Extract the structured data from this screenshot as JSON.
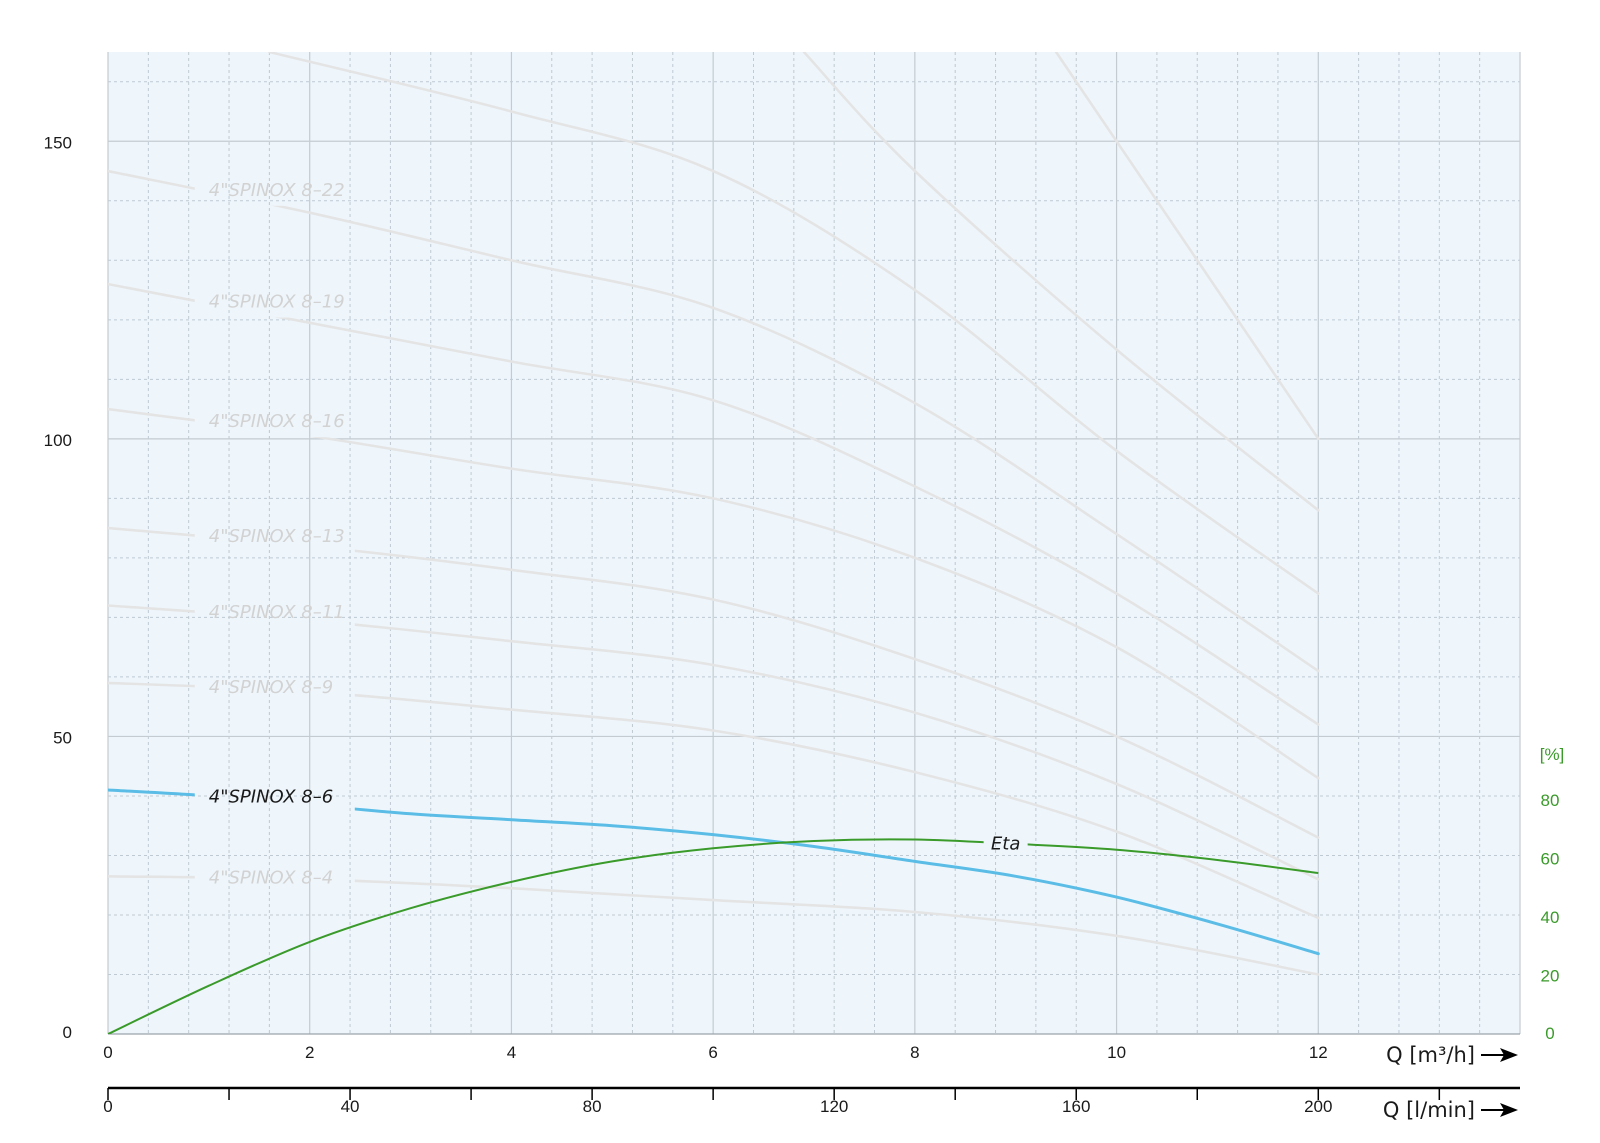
{
  "chart_data": {
    "type": "line",
    "x_axis": {
      "unit_label": "Q [m³/h]",
      "range": [
        0,
        14
      ],
      "ticks": [
        "0",
        "2",
        "4",
        "6",
        "8",
        "10",
        "12"
      ]
    },
    "x2_axis": {
      "unit_label": "Q [l/min]",
      "range": [
        0,
        233.33
      ],
      "ticks": [
        "0",
        "40",
        "80",
        "120",
        "160",
        "200"
      ]
    },
    "y_axis": {
      "range": [
        0,
        165
      ],
      "ticks": [
        "0",
        "50",
        "100",
        "150"
      ]
    },
    "y2_axis": {
      "unit_label": "[%]",
      "range": [
        0,
        80
      ],
      "ticks": [
        "0",
        "20",
        "40",
        "60",
        "80"
      ]
    },
    "grid": true,
    "colors": {
      "plot_bg": "#eef6fc",
      "grid_major": "#c4ccd2",
      "grid_minor": "#bfc9d1",
      "curve_grey": "#e4e4e4",
      "label_grey": "#d2d2d2",
      "highlight": "#5bbde6",
      "efficiency": "#3a9a2a"
    },
    "series": [
      {
        "name": "4\"SPINOX 8–4",
        "highlight": false,
        "x": [
          0,
          2,
          4,
          6,
          8,
          10,
          12
        ],
        "y": [
          26.5,
          26,
          24.5,
          22.5,
          20.5,
          16.5,
          10
        ]
      },
      {
        "name": "4\"SPINOX 8–6",
        "highlight": true,
        "x": [
          0,
          1,
          2,
          3,
          4,
          5,
          6,
          7,
          8,
          9,
          10,
          11,
          12
        ],
        "y": [
          41,
          40,
          38.5,
          37,
          36,
          35,
          33.5,
          31.5,
          29,
          26.5,
          23,
          18.5,
          13.5
        ]
      },
      {
        "name": "4\"SPINOX 8–9",
        "highlight": false,
        "x": [
          0,
          2,
          4,
          6,
          8,
          10,
          12
        ],
        "y": [
          59,
          57.5,
          54.5,
          51,
          44,
          34,
          19.5
        ]
      },
      {
        "name": "4\"SPINOX 8–11",
        "highlight": false,
        "x": [
          0,
          2,
          4,
          6,
          8,
          10,
          12
        ],
        "y": [
          72,
          69.5,
          66,
          62,
          54,
          42,
          26
        ]
      },
      {
        "name": "4\"SPINOX 8–13",
        "highlight": false,
        "x": [
          0,
          2,
          4,
          6,
          8,
          10,
          12
        ],
        "y": [
          85,
          82,
          78,
          73,
          63,
          50,
          33
        ]
      },
      {
        "name": "4\"SPINOX 8–16",
        "highlight": false,
        "x": [
          0,
          2,
          4,
          6,
          8,
          10,
          12
        ],
        "y": [
          105,
          100.5,
          95,
          90,
          80,
          65,
          43
        ]
      },
      {
        "name": "4\"SPINOX 8–19",
        "highlight": false,
        "x": [
          0,
          2,
          4,
          6,
          8,
          10,
          12
        ],
        "y": [
          126,
          119.5,
          113,
          106.5,
          92,
          74,
          52
        ]
      },
      {
        "name": "4\"SPINOX 8–22",
        "highlight": false,
        "x": [
          0,
          2,
          4,
          6,
          8,
          10,
          12
        ],
        "y": [
          145,
          138,
          130,
          122,
          106,
          84,
          61
        ]
      },
      {
        "name": "",
        "highlight": false,
        "x": [
          1.6,
          4,
          6,
          8,
          10,
          12
        ],
        "y": [
          165,
          155,
          145,
          125,
          98,
          74
        ]
      },
      {
        "name": "",
        "highlight": false,
        "x": [
          6.9,
          8,
          10,
          12
        ],
        "y": [
          165,
          145,
          115,
          88
        ]
      },
      {
        "name": "",
        "highlight": false,
        "x": [
          9.4,
          10,
          12
        ],
        "y": [
          165,
          150,
          100
        ]
      }
    ],
    "efficiency": {
      "name": "Eta",
      "x": [
        0,
        1,
        2,
        3,
        4,
        5,
        6,
        7,
        8,
        9,
        10,
        11,
        12
      ],
      "y": [
        0,
        16.5,
        31.5,
        43,
        52,
        59,
        63.5,
        66,
        66.5,
        65,
        63,
        59.5,
        55
      ]
    }
  }
}
